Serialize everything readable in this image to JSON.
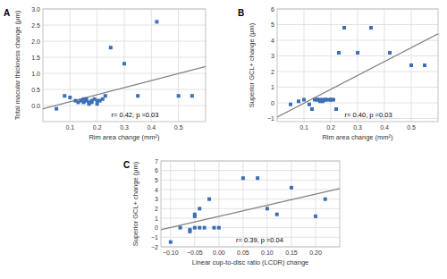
{
  "chart_data": [
    {
      "type": "scatter",
      "title": "A",
      "x_label": "Rim area change (mm²)",
      "y_label": "Total macular thickness change (μm)",
      "annotations": [
        "r= 0.42, p =0.03"
      ],
      "x": [
        0.05,
        0.08,
        0.1,
        0.12,
        0.13,
        0.14,
        0.15,
        0.15,
        0.16,
        0.16,
        0.17,
        0.17,
        0.18,
        0.18,
        0.19,
        0.2,
        0.2,
        0.21,
        0.22,
        0.23,
        0.25,
        0.3,
        0.35,
        0.42,
        0.5,
        0.55
      ],
      "values": [
        -0.1,
        0.3,
        0.25,
        0.15,
        0.1,
        0.15,
        0.1,
        0.2,
        0.2,
        0.15,
        0.1,
        0.05,
        0.1,
        0.15,
        0.2,
        0.15,
        0.05,
        0.15,
        0.2,
        0.3,
        1.8,
        1.3,
        0.3,
        2.6,
        0.3,
        0.3
      ],
      "trend": {
        "x": [
          0.0,
          0.6
        ],
        "y": [
          -0.1012,
          1.2134
        ]
      },
      "xlim": [
        0.0,
        0.6
      ],
      "ylim": [
        -0.5,
        3.0
      ],
      "xticks": [
        0.1,
        0.2,
        0.3,
        0.4,
        0.5
      ],
      "yticks": [
        {
          "value": 0.0,
          "label": "0.0"
        },
        0.5,
        {
          "value": 1.0,
          "label": "1.0"
        },
        1.5,
        {
          "value": 2.0,
          "label": "2.0"
        },
        2.5,
        {
          "value": 3.0,
          "label": "3.0"
        }
      ],
      "grid": true
    },
    {
      "type": "scatter",
      "title": "B",
      "x_label": "Rim area change (mm²)",
      "y_label": "Superior GCL+ change (μm)",
      "annotations": [
        "r= 0.40, p =0.03"
      ],
      "x": [
        0.05,
        0.08,
        0.1,
        0.12,
        0.13,
        0.14,
        0.15,
        0.15,
        0.16,
        0.16,
        0.17,
        0.17,
        0.18,
        0.18,
        0.19,
        0.2,
        0.2,
        0.21,
        0.22,
        0.23,
        0.25,
        0.3,
        0.35,
        0.42,
        0.5,
        0.55
      ],
      "values": [
        -0.1,
        0.1,
        0.2,
        -0.1,
        -0.4,
        0.2,
        0.2,
        0.2,
        0.2,
        0.1,
        0.2,
        0.1,
        0.2,
        0.2,
        0.2,
        0.2,
        0.2,
        0.2,
        -0.4,
        3.2,
        4.8,
        3.2,
        4.8,
        3.2,
        2.4,
        2.4
      ],
      "trend": {
        "x": [
          0.0,
          0.6
        ],
        "y": [
          -0.9063,
          4.4099
        ]
      },
      "xlim": [
        0.0,
        0.6
      ],
      "ylim": [
        -1.2,
        6.0
      ],
      "xticks": [
        0.1,
        0.2,
        0.3,
        0.4,
        0.5
      ],
      "yticks": [
        {
          "value": -1,
          "label": "−1"
        },
        0,
        1,
        2,
        3,
        4,
        5,
        6
      ],
      "grid": true
    },
    {
      "type": "scatter",
      "title": "C",
      "x_label": "Linear cup-to-disc ratio (LCDR) change",
      "y_label": "Superior GCL+ change (μm)",
      "annotations": [
        "r= 0.39, p =0.04"
      ],
      "x": [
        -0.1,
        -0.08,
        -0.06,
        -0.06,
        -0.05,
        -0.05,
        -0.05,
        -0.04,
        -0.04,
        -0.03,
        -0.02,
        -0.01,
        0.0,
        0.05,
        0.08,
        0.1,
        0.12,
        0.15,
        0.2,
        0.22
      ],
      "values": [
        -1.5,
        0.0,
        -0.2,
        -0.4,
        0.0,
        1.2,
        1.4,
        0.0,
        2.0,
        0.0,
        3.0,
        0.0,
        0.0,
        5.2,
        5.2,
        2.0,
        1.4,
        4.2,
        1.2,
        3.0
      ],
      "trend": {
        "x": [
          -0.12,
          0.25
        ],
        "y": [
          -0.2057,
          4.106
        ]
      },
      "xlim": [
        -0.12,
        0.25
      ],
      "ylim": [
        -2.0,
        7.0
      ],
      "xticks": [
        {
          "value": -0.1,
          "label": "−0.10"
        },
        {
          "value": -0.05,
          "label": "−0.05"
        },
        {
          "value": 0,
          "label": "0.00"
        },
        0.05,
        {
          "value": 0.1,
          "label": "0.10"
        },
        0.15,
        {
          "value": 0.2,
          "label": "0.20"
        }
      ],
      "yticks": [
        {
          "value": -2,
          "label": "−2"
        },
        {
          "value": -1,
          "label": "−1"
        },
        0,
        1,
        2,
        3,
        4,
        5,
        6,
        7
      ],
      "grid": true
    }
  ]
}
